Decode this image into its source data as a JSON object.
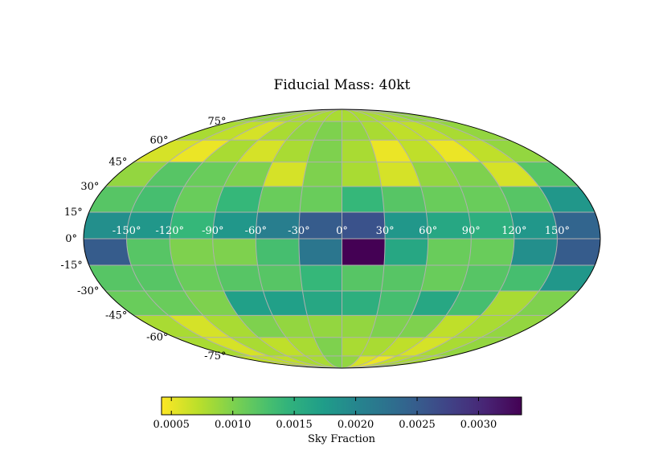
{
  "chart_data": {
    "type": "heatmap",
    "projection": "mollweide",
    "title": "Fiducial Mass: 40kt",
    "lon_tick_labels": [
      "-150°",
      "-120°",
      "-90°",
      "-60°",
      "-30°",
      "0°",
      "30°",
      "60°",
      "90°",
      "120°",
      "150°"
    ],
    "lon_ticks": [
      -150,
      -120,
      -90,
      -60,
      -30,
      0,
      30,
      60,
      90,
      120,
      150
    ],
    "lat_tick_labels": [
      "75°",
      "60°",
      "45°",
      "30°",
      "15°",
      "0°",
      "-15°",
      "-30°",
      "-45°",
      "-60°",
      "-75°"
    ],
    "lat_ticks": [
      75,
      60,
      45,
      30,
      15,
      0,
      -15,
      -30,
      -45,
      -60,
      -75
    ],
    "cells_ra_deg": [
      -180,
      -150,
      -120,
      -90,
      -60,
      -30,
      0,
      30,
      60,
      90,
      120,
      150,
      180
    ],
    "cells_dec_deg": [
      90,
      75,
      60,
      45,
      30,
      15,
      0,
      -15,
      -30,
      -45,
      -60,
      -75,
      -90
    ],
    "sky_fraction": [
      [
        0.0009,
        0.0009,
        0.0008,
        0.0008,
        0.0008,
        0.0008,
        0.0008,
        0.0008,
        0.0008,
        0.0008,
        0.0009,
        0.0009
      ],
      [
        0.0008,
        0.0007,
        0.0006,
        0.0008,
        0.0009,
        0.001,
        0.0009,
        0.0008,
        0.0007,
        0.0007,
        0.0008,
        0.0009
      ],
      [
        0.0006,
        0.0005,
        0.0008,
        0.0006,
        0.0008,
        0.001,
        0.0008,
        0.0005,
        0.0007,
        0.0005,
        0.0007,
        0.0009
      ],
      [
        0.0009,
        0.0012,
        0.0011,
        0.001,
        0.0006,
        0.001,
        0.0008,
        0.0006,
        0.0009,
        0.001,
        0.0006,
        0.0012
      ],
      [
        0.0012,
        0.0013,
        0.0011,
        0.0014,
        0.0011,
        0.0011,
        0.0014,
        0.0012,
        0.0011,
        0.0011,
        0.0012,
        0.0018
      ],
      [
        0.0019,
        0.0018,
        0.0014,
        0.0018,
        0.0021,
        0.0025,
        0.0026,
        0.0018,
        0.0016,
        0.0015,
        0.0018,
        0.0024
      ],
      [
        0.0025,
        0.0012,
        0.001,
        0.001,
        0.0013,
        0.0022,
        0.0034,
        0.0016,
        0.0011,
        0.0011,
        0.0019,
        0.0025
      ],
      [
        0.0012,
        0.0012,
        0.0011,
        0.0012,
        0.0012,
        0.0014,
        0.0012,
        0.0012,
        0.0011,
        0.0012,
        0.0013,
        0.0018
      ],
      [
        0.0011,
        0.0011,
        0.001,
        0.0017,
        0.0017,
        0.0016,
        0.0015,
        0.0013,
        0.0016,
        0.0013,
        0.0008,
        0.001
      ],
      [
        0.0008,
        0.0006,
        0.0008,
        0.001,
        0.0009,
        0.0009,
        0.0009,
        0.001,
        0.001,
        0.0007,
        0.0008,
        0.0009
      ],
      [
        0.0008,
        0.0006,
        0.0008,
        0.0007,
        0.0008,
        0.001,
        0.0008,
        0.0008,
        0.0007,
        0.0006,
        0.0008,
        0.0009
      ],
      [
        0.0007,
        0.0007,
        0.0007,
        0.0008,
        0.0008,
        0.001,
        0.0009,
        0.0006,
        0.0005,
        0.0007,
        0.0008,
        0.0008
      ]
    ],
    "colormap": "viridis_r",
    "colorbar": {
      "label": "Sky Fraction",
      "range": [
        0.00042,
        0.00335
      ],
      "tick_values": [
        0.0005,
        0.001,
        0.0015,
        0.002,
        0.0025,
        0.003
      ],
      "tick_labels": [
        "0.0005",
        "0.0010",
        "0.0015",
        "0.0020",
        "0.0025",
        "0.0030"
      ],
      "orientation": "horizontal",
      "placement": "bottom"
    },
    "grid": true,
    "grid_color": "#b0b0b0"
  }
}
